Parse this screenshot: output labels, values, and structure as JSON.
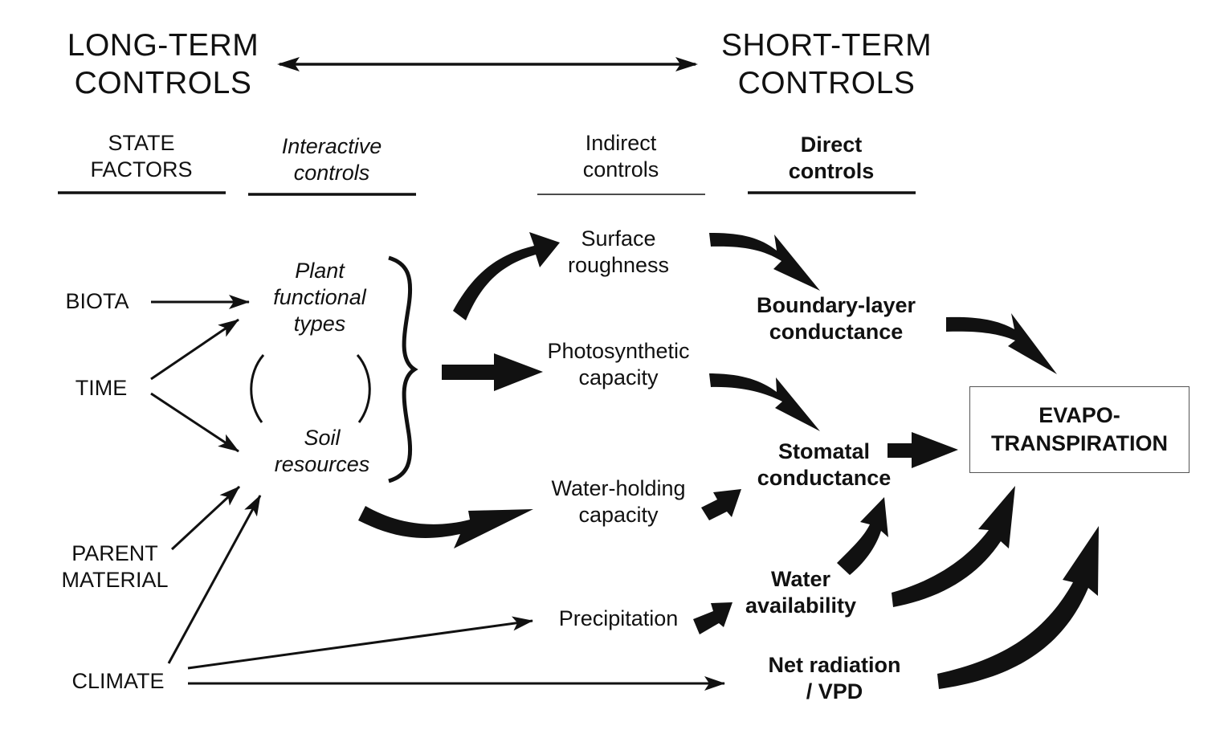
{
  "titles": {
    "long_term": [
      "LONG-TERM",
      "CONTROLS"
    ],
    "short_term": [
      "SHORT-TERM",
      "CONTROLS"
    ]
  },
  "headers": {
    "state_factors": [
      "STATE",
      "FACTORS"
    ],
    "interactive_controls": [
      "Interactive",
      "controls"
    ],
    "indirect_controls": [
      "Indirect",
      "controls"
    ],
    "direct_controls": [
      "Direct",
      "controls"
    ]
  },
  "state_factors": {
    "biota": "BIOTA",
    "time": "TIME",
    "parent_material": [
      "PARENT",
      "MATERIAL"
    ],
    "climate": "CLIMATE"
  },
  "interactive": {
    "plant_functional_types": [
      "Plant",
      "functional",
      "types"
    ],
    "soil_resources": [
      "Soil",
      "resources"
    ]
  },
  "indirect": {
    "surface_roughness": [
      "Surface",
      "roughness"
    ],
    "photosynthetic_capacity": [
      "Photosynthetic",
      "capacity"
    ],
    "water_holding_capacity": [
      "Water-holding",
      "capacity"
    ],
    "precipitation": "Precipitation"
  },
  "direct": {
    "boundary_layer_conductance": [
      "Boundary-layer",
      "conductance"
    ],
    "stomatal_conductance": [
      "Stomatal",
      "conductance"
    ],
    "water_availability": [
      "Water",
      "availability"
    ],
    "net_radiation_vpd": [
      "Net radiation",
      "/ VPD"
    ]
  },
  "outcome": [
    "EVAPO-",
    "TRANSPIRATION"
  ]
}
